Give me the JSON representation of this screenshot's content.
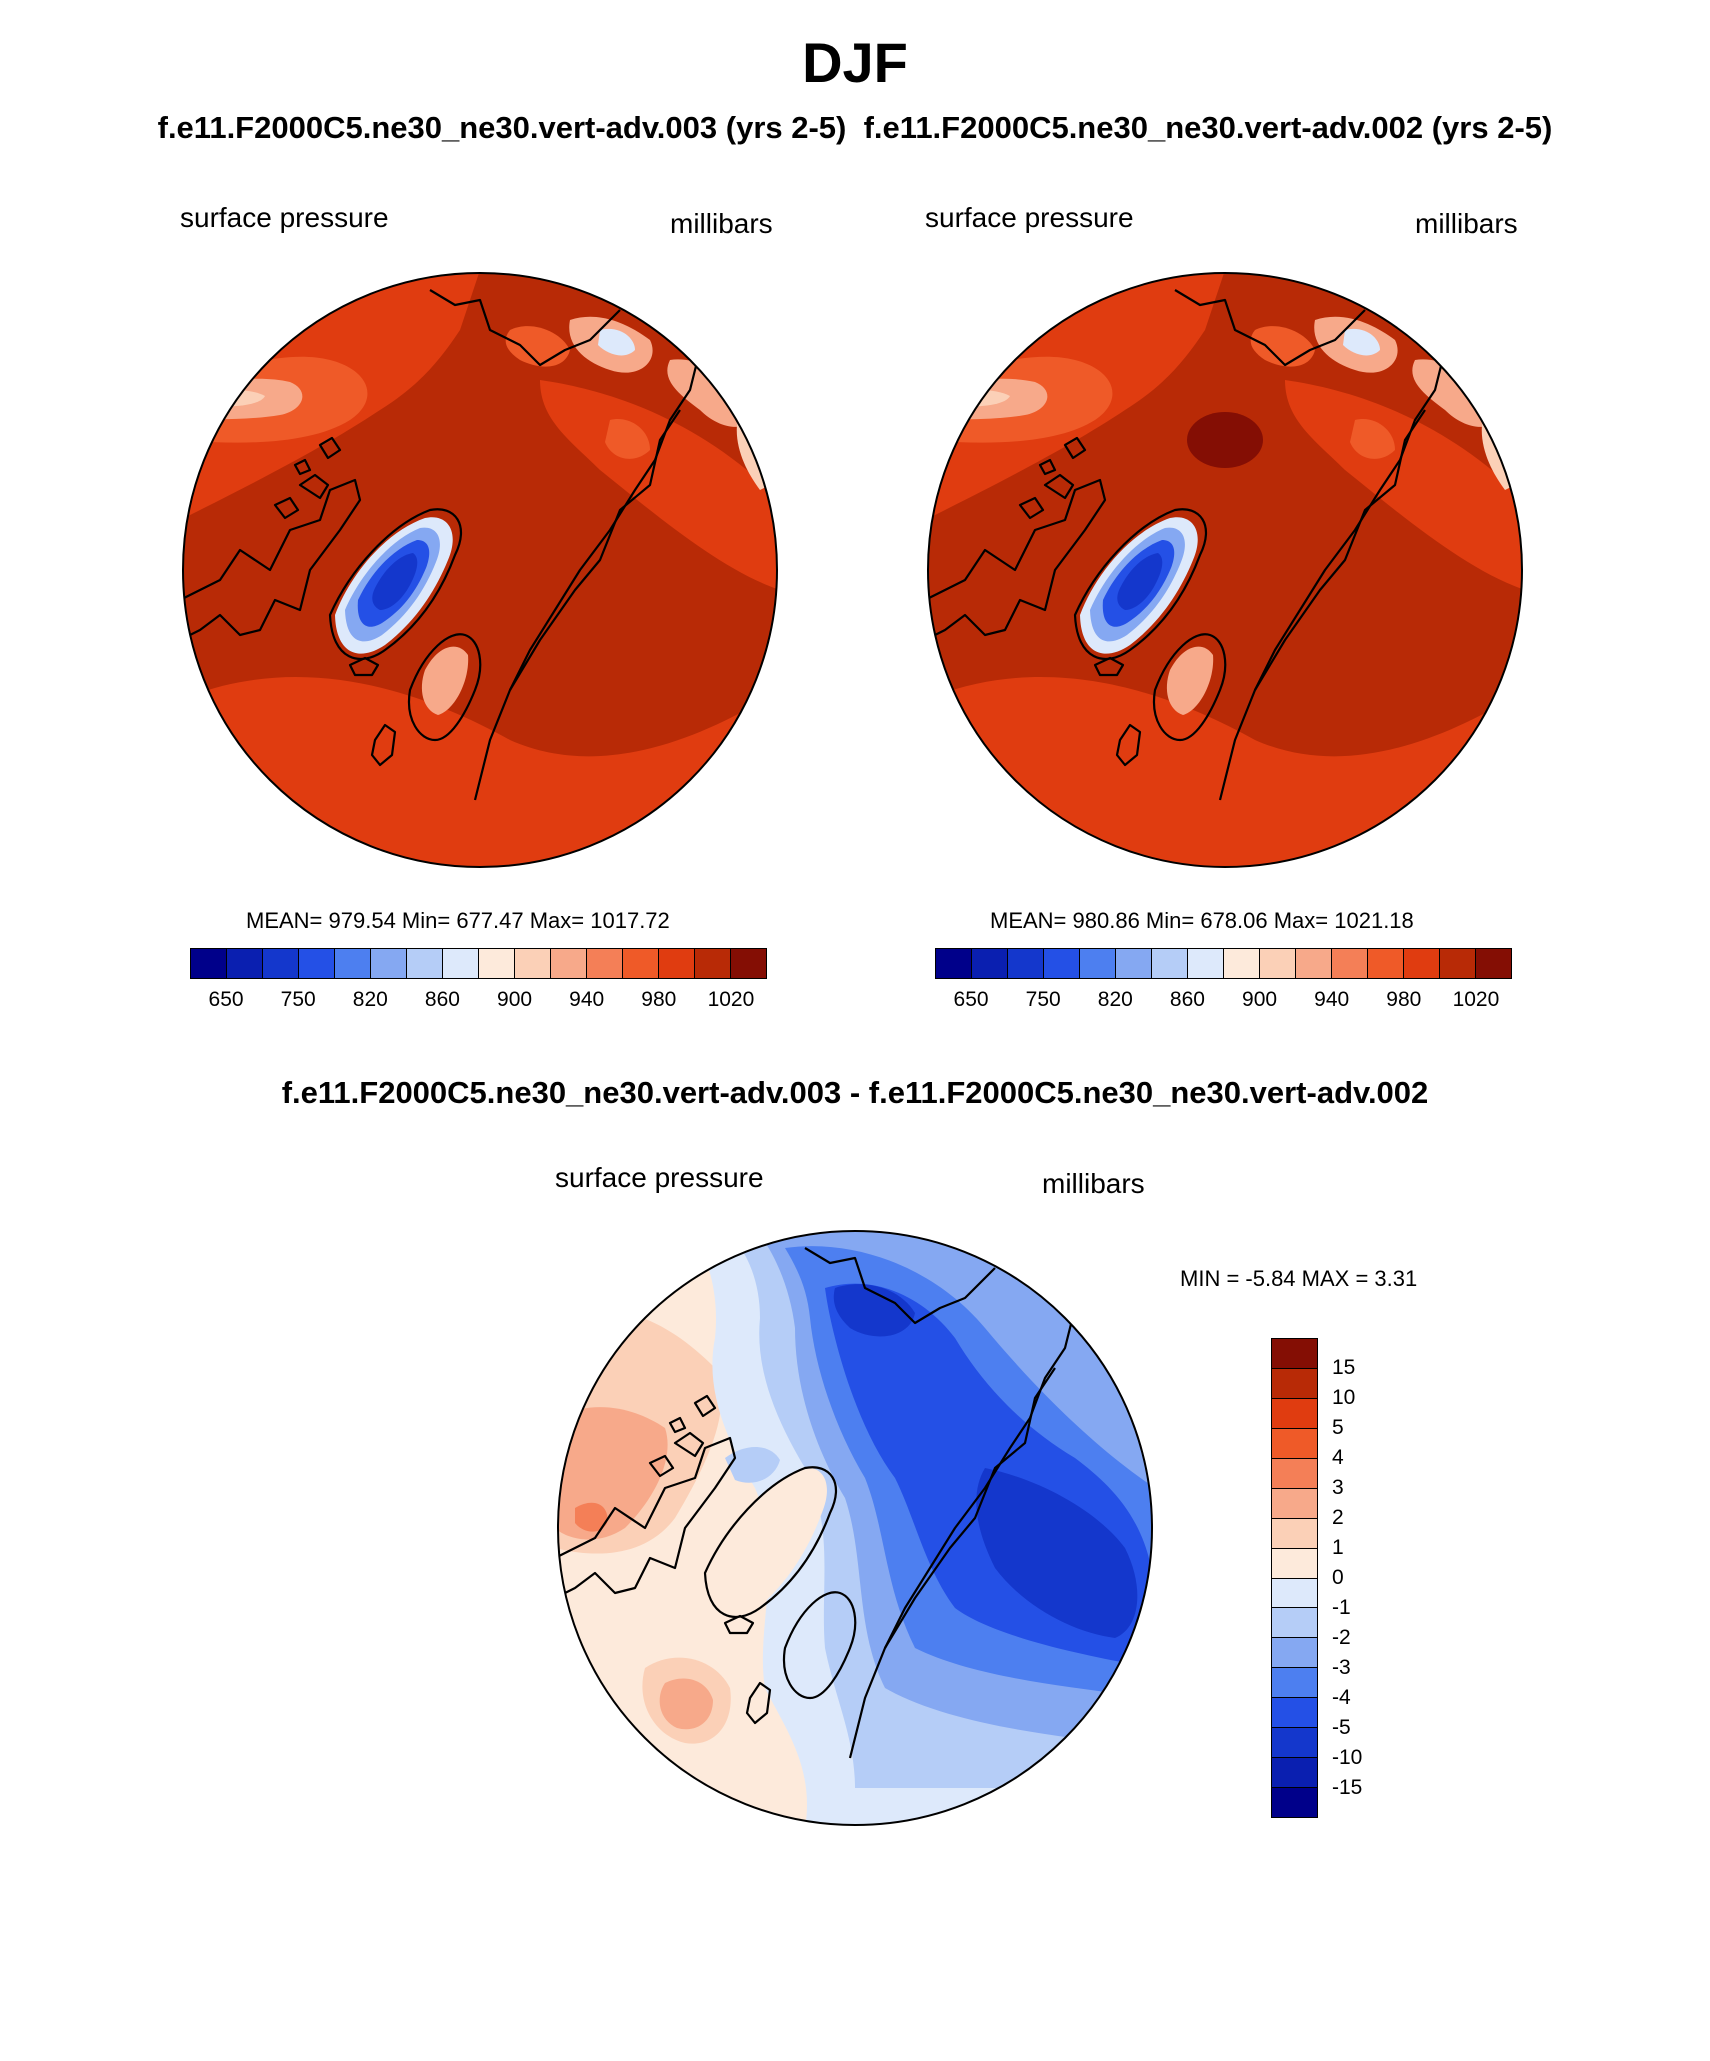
{
  "title": "DJF",
  "panel1": {
    "case": "f.e11.F2000C5.ne30_ne30.vert-adv.003 (yrs 2-5)",
    "left_label": "surface pressure",
    "right_label": "millibars",
    "stats": "MEAN= 979.54  Min= 677.47  Max= 1017.72"
  },
  "panel2": {
    "case": "f.e11.F2000C5.ne30_ne30.vert-adv.002 (yrs 2-5)",
    "left_label": "surface pressure",
    "right_label": "millibars",
    "stats": "MEAN= 980.86  Min= 678.06  Max= 1021.18"
  },
  "diff": {
    "title": "f.e11.F2000C5.ne30_ne30.vert-adv.003 - f.e11.F2000C5.ne30_ne30.vert-adv.002",
    "left_label": "surface pressure",
    "right_label": "millibars",
    "stats": "MIN =  -5.84 MAX =   3.31"
  },
  "abs_colorbar": {
    "colors": [
      "#00008a",
      "#0a1fb0",
      "#1437cc",
      "#2450e6",
      "#4d7ff0",
      "#85a8f2",
      "#b5cdf7",
      "#dde9fb",
      "#fdeadb",
      "#fbd0b7",
      "#f7a98a",
      "#f47f57",
      "#ef5a28",
      "#e03c10",
      "#b82a06",
      "#840e04"
    ],
    "ticks": [
      "650",
      "750",
      "820",
      "860",
      "900",
      "940",
      "980",
      "1020"
    ]
  },
  "diff_colorbar": {
    "colors": [
      "#840e04",
      "#b82a06",
      "#e03c10",
      "#ef5a28",
      "#f47f57",
      "#f7a98a",
      "#fbd0b7",
      "#fdeadb",
      "#dde9fb",
      "#b5cdf7",
      "#85a8f2",
      "#4d7ff0",
      "#2450e6",
      "#1437cc",
      "#0a1fb0",
      "#00008a"
    ],
    "ticks": [
      "15",
      "10",
      "5",
      "4",
      "3",
      "2",
      "1",
      "0",
      "-1",
      "-2",
      "-3",
      "-4",
      "-5",
      "-10",
      "-15"
    ]
  },
  "map_colors": {
    "abs_base": "#b82a06",
    "abs_mid": "#e03c10",
    "abs_light": "#ef5a28",
    "abs_pale": "#f7a98a",
    "abs_paler": "#fbd0b7",
    "abs_white": "#dde9fb",
    "abs_dark": "#840e04",
    "blue_1": "#85a8f2",
    "blue_2": "#2450e6",
    "blue_3": "#1437cc",
    "diff_base": "#fdeadb",
    "diff_red1": "#fbd0b7",
    "diff_red2": "#f7a98a",
    "diff_red3": "#f47f57",
    "diff_blue0": "#dde9fb",
    "diff_blue1": "#b5cdf7",
    "diff_blue2": "#85a8f2",
    "diff_blue3": "#4d7ff0",
    "diff_blue4": "#2450e6",
    "diff_blue5": "#1437cc",
    "coast": "#000000"
  }
}
